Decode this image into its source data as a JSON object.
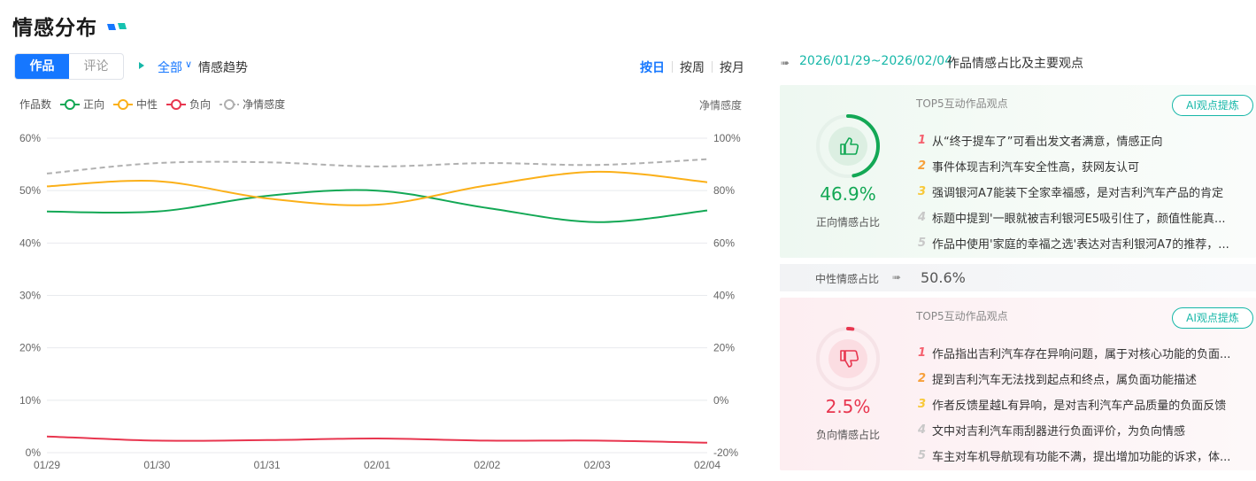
{
  "title": "情感分布",
  "tabs": [
    {
      "label": "作品",
      "active": true
    },
    {
      "label": "评论",
      "active": false
    }
  ],
  "filter": {
    "value": "全部",
    "trend_label": "情感趋势"
  },
  "granularity": [
    {
      "label": "按日",
      "active": true
    },
    {
      "label": "按周",
      "active": false
    },
    {
      "label": "按月",
      "active": false
    }
  ],
  "colors": {
    "accent": "#1677ff",
    "teal": "#16b7a8",
    "positive": "#13a855",
    "neutral": "#fbb019",
    "negative": "#e8364f",
    "net": "#b0b0b0"
  },
  "chart_data": {
    "type": "line",
    "x": [
      "01/29",
      "01/30",
      "01/31",
      "02/01",
      "02/02",
      "02/03",
      "02/04"
    ],
    "left_axis": {
      "label": "作品数",
      "ticks": [
        "60%",
        "50%",
        "40%",
        "30%",
        "20%",
        "10%",
        "0%"
      ],
      "range": [
        0,
        60
      ]
    },
    "right_axis": {
      "label": "净情感度",
      "ticks": [
        "100%",
        "80%",
        "60%",
        "40%",
        "20%",
        "0%",
        "-20%"
      ],
      "range": [
        -20,
        100
      ]
    },
    "grid": true,
    "legend_position": "top-left",
    "series": [
      {
        "name": "正向",
        "axis": "left",
        "color": "#13a855",
        "values": [
          46.0,
          46.0,
          49.0,
          50.0,
          46.7,
          44.0,
          46.2
        ]
      },
      {
        "name": "中性",
        "axis": "left",
        "color": "#fbb019",
        "values": [
          50.8,
          51.8,
          48.5,
          47.3,
          51.0,
          53.6,
          51.6
        ]
      },
      {
        "name": "负向",
        "axis": "left",
        "color": "#e8364f",
        "values": [
          3.1,
          2.3,
          2.4,
          2.7,
          2.3,
          2.3,
          1.9
        ]
      },
      {
        "name": "净情感度",
        "axis": "right",
        "color": "#b0b0b0",
        "dashed": true,
        "values": [
          86.5,
          90.5,
          90.8,
          89.2,
          90.5,
          89.8,
          92.0
        ]
      }
    ]
  },
  "summary": {
    "range": "2026/01/29~2026/02/04",
    "range_desc": "作品情感占比及主要观点",
    "positive": {
      "percent": "46.9%",
      "ratio": 0.469,
      "label": "正向情感占比",
      "icon": "thumbs-up-icon",
      "top5_title": "TOP5互动作品观点",
      "ai_button": "AI观点提炼",
      "opinions": [
        {
          "num": "1",
          "text": "从“终于提车了”可看出发文者满意，情感正向"
        },
        {
          "num": "2",
          "text": "事件体现吉利汽车安全性高，获网友认可"
        },
        {
          "num": "3",
          "text": "强调银河A7能装下全家幸福感，是对吉利汽车产品的肯定"
        },
        {
          "num": "4",
          "text": "标题中提到'一眼就被吉利银河E5吸引住了，颜值性能真..."
        },
        {
          "num": "5",
          "text": "作品中使用'家庭的幸福之选'表达对吉利银河A7的推荐，..."
        }
      ]
    },
    "neutral": {
      "label": "中性情感占比",
      "percent": "50.6%"
    },
    "negative": {
      "percent": "2.5%",
      "ratio": 0.025,
      "label": "负向情感占比",
      "icon": "thumbs-down-icon",
      "top5_title": "TOP5互动作品观点",
      "ai_button": "AI观点提炼",
      "opinions": [
        {
          "num": "1",
          "text": "作品指出吉利汽车存在异响问题，属于对核心功能的负面..."
        },
        {
          "num": "2",
          "text": "提到吉利汽车无法找到起点和终点，属负面功能描述"
        },
        {
          "num": "3",
          "text": "作者反馈星越L有异响，是对吉利汽车产品质量的负面反馈"
        },
        {
          "num": "4",
          "text": "文中对吉利汽车雨刮器进行负面评价，为负向情感"
        },
        {
          "num": "5",
          "text": "车主对车机导航现有功能不满，提出增加功能的诉求，体..."
        }
      ]
    }
  },
  "rank_colors": [
    "#f5606e",
    "#f7a03a",
    "#f8c93a",
    "#c8c8c8",
    "#c8c8c8"
  ]
}
